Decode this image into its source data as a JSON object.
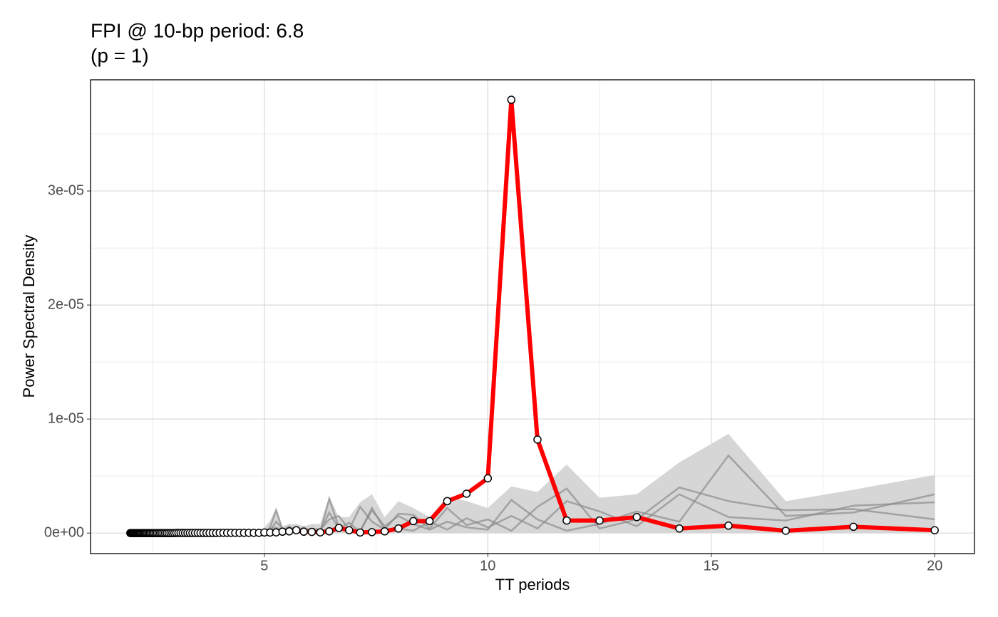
{
  "chart_data": {
    "type": "line",
    "title": "FPI @ 10-bp period: 6.8",
    "subtitle": "(p = 1)",
    "x_label": "TT periods",
    "y_label": "Power Spectral Density",
    "xlim": [
      1.11,
      20.89
    ],
    "ylim": [
      -1.8e-06,
      3.975e-05
    ],
    "xticks": [
      5,
      10,
      15,
      20
    ],
    "yticks": [
      {
        "value": 0,
        "label": "0e+00"
      },
      {
        "value": 1e-05,
        "label": "1e-05"
      },
      {
        "value": 2e-05,
        "label": "2e-05"
      },
      {
        "value": 3e-05,
        "label": "3e-05"
      }
    ],
    "xminor": [
      2.5,
      7.5,
      12.5,
      17.5
    ],
    "yminor": [
      5e-06,
      1.5e-05,
      2.5e-05,
      3.5e-05
    ],
    "grid": true,
    "x": [
      2.0,
      2.02,
      2.041,
      2.062,
      2.083,
      2.105,
      2.128,
      2.151,
      2.174,
      2.198,
      2.222,
      2.247,
      2.273,
      2.299,
      2.326,
      2.353,
      2.381,
      2.41,
      2.439,
      2.469,
      2.5,
      2.532,
      2.564,
      2.597,
      2.632,
      2.667,
      2.703,
      2.74,
      2.778,
      2.817,
      2.857,
      2.899,
      2.941,
      2.985,
      3.03,
      3.077,
      3.125,
      3.175,
      3.226,
      3.279,
      3.333,
      3.39,
      3.448,
      3.509,
      3.571,
      3.636,
      3.704,
      3.774,
      3.846,
      3.922,
      4.0,
      4.082,
      4.167,
      4.255,
      4.348,
      4.444,
      4.545,
      4.651,
      4.762,
      4.878,
      5.0,
      5.128,
      5.263,
      5.405,
      5.556,
      5.714,
      5.882,
      6.061,
      6.25,
      6.452,
      6.667,
      6.897,
      7.143,
      7.407,
      7.692,
      8.0,
      8.333,
      8.696,
      9.091,
      9.524,
      10.0,
      10.526,
      11.111,
      11.765,
      12.5,
      13.333,
      14.286,
      15.385,
      16.667,
      18.182,
      20.0
    ],
    "series": [
      {
        "color": "#ff0000",
        "values": [
          0,
          0,
          0,
          0,
          0,
          0,
          0,
          0,
          0,
          0,
          0,
          0,
          0,
          0,
          0,
          0,
          0,
          0,
          0,
          0,
          0,
          0,
          0,
          0,
          0,
          0,
          0,
          0,
          0,
          0,
          0,
          0,
          0,
          0,
          1e-08,
          1e-08,
          1e-08,
          1e-08,
          1e-08,
          1e-08,
          1e-08,
          1e-08,
          1e-08,
          1e-08,
          1e-08,
          1e-08,
          1e-08,
          1e-08,
          1e-08,
          1e-08,
          2e-08,
          2e-08,
          2e-08,
          2e-08,
          2e-08,
          2e-08,
          2e-08,
          2e-08,
          2e-08,
          2e-08,
          5e-08,
          4e-08,
          6e-08,
          1.2e-07,
          1.5e-07,
          2.5e-07,
          1.2e-07,
          1e-07,
          6e-08,
          1.5e-07,
          4.5e-07,
          2.5e-07,
          5e-08,
          8e-08,
          1.5e-07,
          4e-07,
          1.05e-06,
          1.05e-06,
          2.8e-06,
          3.45e-06,
          4.8e-06,
          3.8e-05,
          8.2e-06,
          1.1e-06,
          1.1e-06,
          1.4e-06,
          4e-07,
          6.5e-07,
          2e-07,
          5.5e-07,
          2.5e-07
        ]
      }
    ],
    "background": {
      "x": [
        5.0,
        5.128,
        5.263,
        5.405,
        5.556,
        5.714,
        5.882,
        6.061,
        6.25,
        6.452,
        6.667,
        6.897,
        7.143,
        7.407,
        7.692,
        8.0,
        8.333,
        8.696,
        9.091,
        9.524,
        10.0,
        10.526,
        11.111,
        11.765,
        12.5,
        13.333,
        14.286,
        15.385,
        16.667,
        18.182,
        20.0
      ],
      "band_color": "#d6d6d6",
      "band_upper": [
        5e-07,
        1.1e-06,
        2.2e-06,
        6e-07,
        8e-07,
        8e-07,
        6e-07,
        8e-07,
        8e-07,
        3.2e-06,
        1.4e-06,
        1.4e-06,
        2.7e-06,
        3.4e-06,
        1.4e-06,
        2.8e-06,
        2.2e-06,
        1.4e-06,
        3.2e-06,
        2.8e-06,
        2.2e-06,
        4.1e-06,
        3.6e-06,
        6e-06,
        3.1e-06,
        3.4e-06,
        6.2e-06,
        8.7e-06,
        2.8e-06,
        3.8e-06,
        5.1e-06
      ],
      "lines": [
        {
          "color": "#8c8c8c",
          "values": [
            1e-07,
            5e-07,
            2e-06,
            3e-07,
            2e-07,
            1e-07,
            3e-07,
            2e-07,
            1e-07,
            3e-06,
            5e-07,
            4e-07,
            2e-07,
            2e-06,
            6e-07,
            1.5e-06,
            8e-07,
            3e-07,
            1e-06,
            5e-07,
            3e-07,
            2.9e-06,
            1.2e-06,
            2e-07,
            8e-07,
            1.9e-06,
            1e-06,
            6.8e-06,
            1.5e-06,
            1.8e-06,
            3.4e-06
          ]
        },
        {
          "color": "#8c8c8c",
          "values": [
            2e-07,
            2e-07,
            1e-06,
            4e-07,
            3e-07,
            5e-07,
            2e-07,
            4e-07,
            3e-07,
            1.2e-06,
            1.5e-06,
            3e-07,
            2.3e-06,
            1e-06,
            3e-07,
            1.7e-06,
            1.6e-06,
            4e-07,
            2.2e-06,
            7e-07,
            1.2e-06,
            2e-07,
            2.3e-06,
            3.9e-06,
            4e-07,
            1.2e-06,
            4e-06,
            2.8e-06,
            2e-06,
            2.1e-06,
            1.2e-06
          ]
        },
        {
          "color": "#8c8c8c",
          "values": [
            1e-07,
            3e-07,
            5e-07,
            2e-07,
            6e-07,
            2e-07,
            5e-07,
            1e-07,
            2e-07,
            1.8e-06,
            4e-07,
            9e-07,
            1e-07,
            2.2e-06,
            3e-07,
            4e-07,
            2e-07,
            1e-06,
            3e-07,
            1.3e-06,
            5e-07,
            1.5e-06,
            4e-07,
            2.8e-06,
            1.9e-06,
            6e-07,
            3.4e-06,
            1.4e-06,
            1.1e-06,
            2.4e-06,
            2.7e-06
          ]
        }
      ]
    }
  }
}
